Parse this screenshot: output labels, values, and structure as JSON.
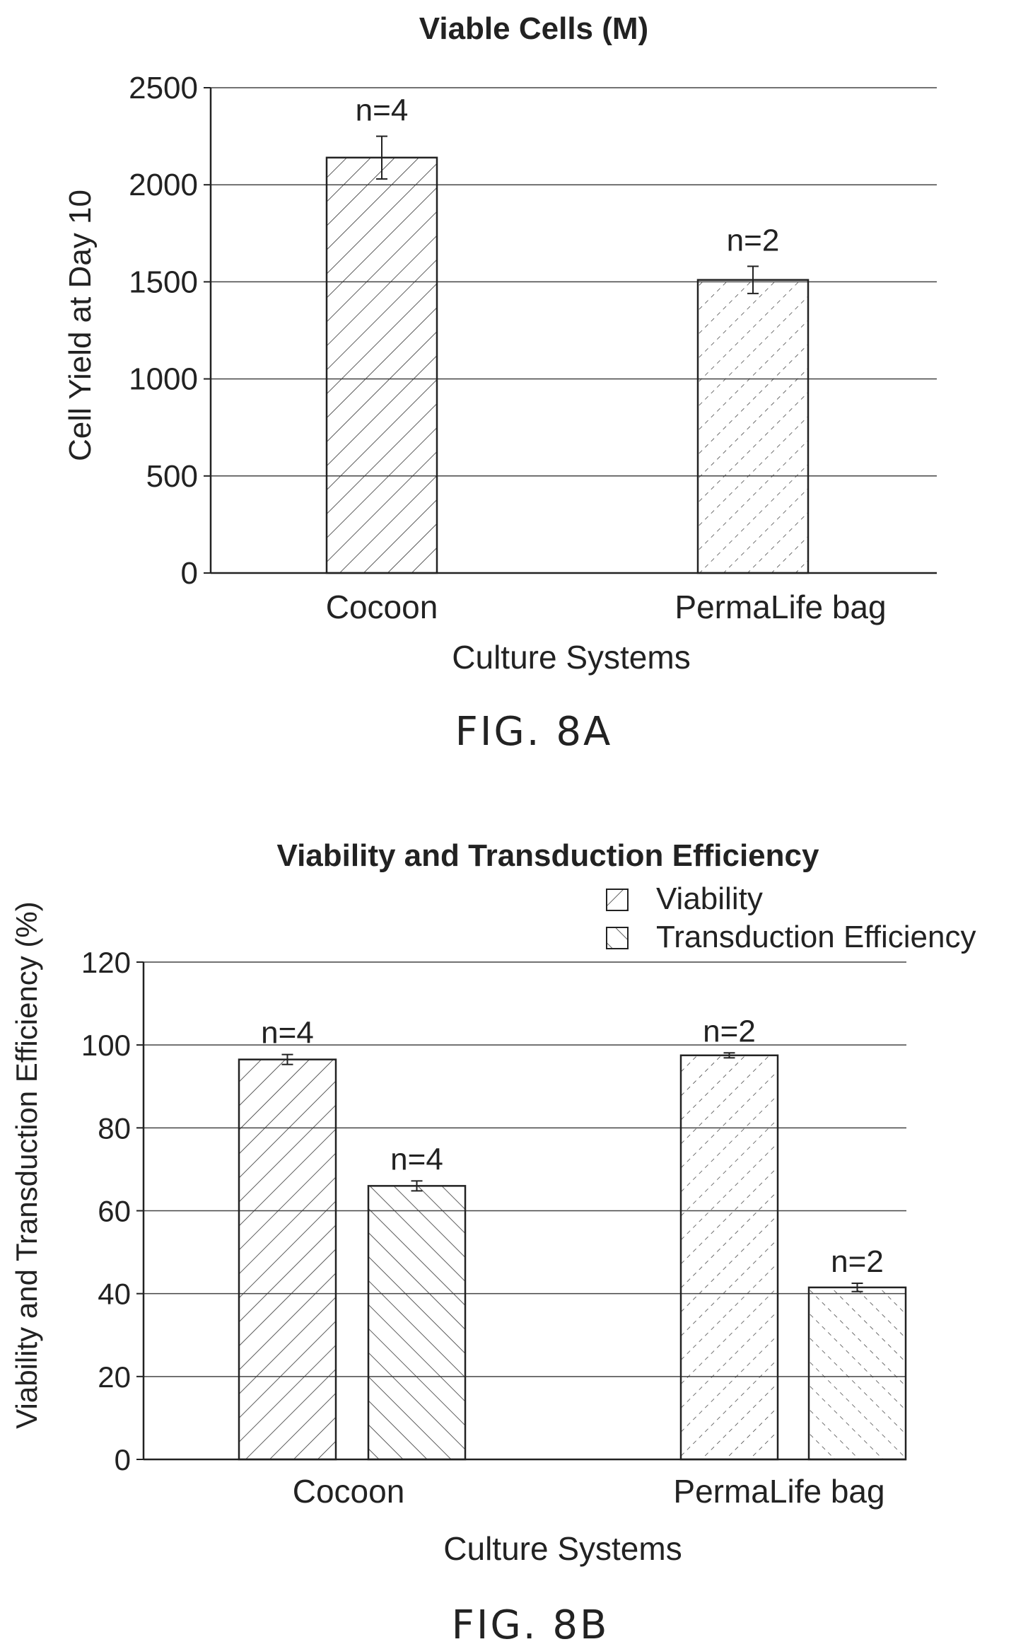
{
  "chart_data": [
    {
      "type": "bar",
      "title": "Viable Cells (M)",
      "xlabel": "Culture Systems",
      "ylabel": "Cell Yield at Day 10",
      "categories": [
        "Cocoon",
        "PermaLife bag"
      ],
      "ylim": [
        0,
        2500
      ],
      "yticks": [
        0,
        500,
        1000,
        1500,
        2000,
        2500
      ],
      "grid": true,
      "series": [
        {
          "values": [
            2140,
            1510
          ],
          "errors": [
            110,
            70
          ],
          "labels": [
            "n=4",
            "n=2"
          ]
        }
      ],
      "figure_label": "FIG. 8A"
    },
    {
      "type": "bar",
      "title": "Viability and Transduction Efficiency",
      "xlabel": "Culture Systems",
      "ylabel": "Viability and Transduction Efficiency (%)",
      "categories": [
        "Cocoon",
        "PermaLife bag"
      ],
      "ylim": [
        0,
        120
      ],
      "yticks": [
        0,
        20,
        40,
        60,
        80,
        100,
        120
      ],
      "grid": true,
      "legend_position": "top-right",
      "series": [
        {
          "name": "Viability",
          "values": [
            96.5,
            97.5
          ],
          "errors": [
            1.2,
            0.6
          ],
          "labels": [
            "n=4",
            "n=2"
          ]
        },
        {
          "name": "Transduction Efficiency",
          "values": [
            66,
            41.5
          ],
          "errors": [
            1.2,
            1.0
          ],
          "labels": [
            "n=4",
            "n=2"
          ]
        }
      ],
      "figure_label": "FIG. 8B"
    }
  ]
}
